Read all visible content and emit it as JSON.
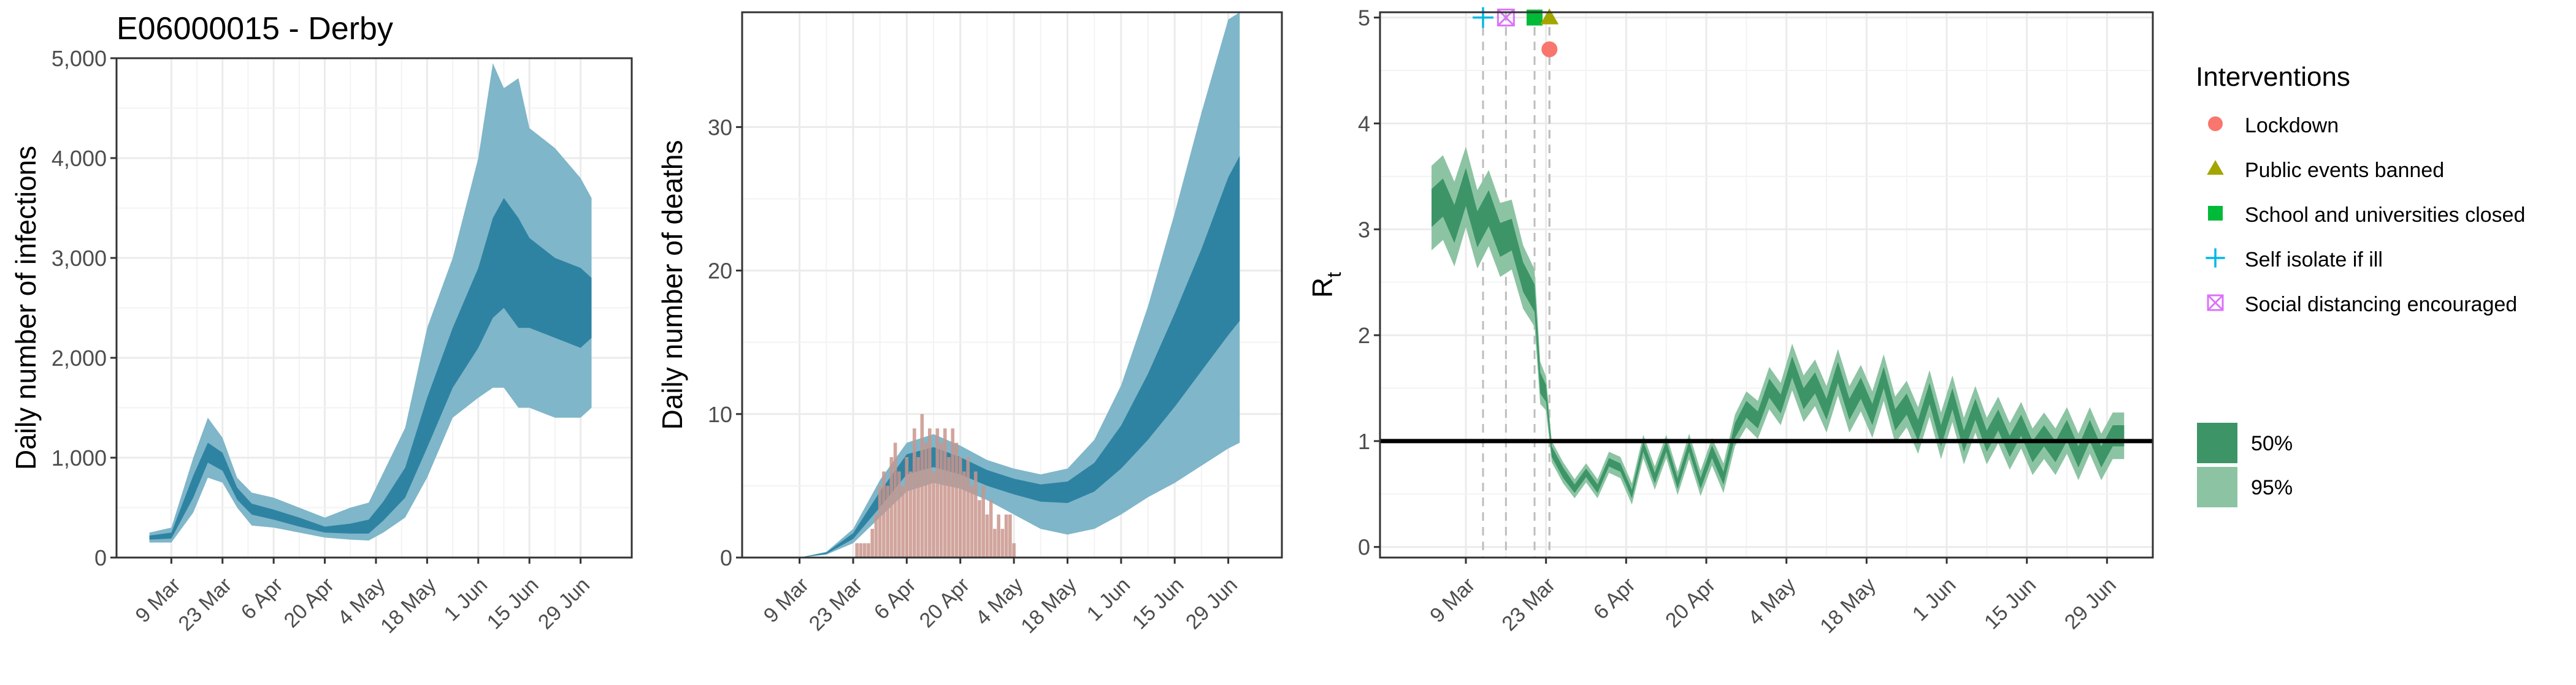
{
  "title": "E06000015 - Derby",
  "colors": {
    "ribbon_inner": "#2f83a2",
    "ribbon_outer": "#7fb6c9",
    "rt_inner": "#3d9567",
    "rt_outer": "#8cc4a3",
    "death_bars": "#c9958c",
    "grid": "#ebebeb",
    "axis_text": "#4d4d4d"
  },
  "chart_data": [
    {
      "id": "infections",
      "type": "area",
      "ylabel": "Daily number of infections",
      "ylim": [
        0,
        5000
      ],
      "yticks": [
        0,
        1000,
        2000,
        3000,
        4000,
        5000
      ],
      "ytick_labels": [
        "0",
        "1,000",
        "2,000",
        "3,000",
        "4,000",
        "5,000"
      ],
      "xticks": [
        9,
        23,
        37,
        51,
        65,
        79,
        93,
        107,
        121
      ],
      "xtick_labels": [
        "9 Mar",
        "23 Mar",
        "6 Apr",
        "20 Apr",
        "4 May",
        "18 May",
        "1 Jun",
        "15 Jun",
        "29 Jun"
      ],
      "xlim": [
        -6,
        135
      ],
      "x_note": "x = days since 1 Mar",
      "series": [
        {
          "band": "95%",
          "x": [
            3,
            9,
            15,
            19,
            23,
            27,
            31,
            37,
            44,
            51,
            58,
            63,
            67,
            73,
            79,
            86,
            93,
            97,
            100,
            104,
            107,
            114,
            121,
            124
          ],
          "lower": [
            150,
            150,
            450,
            800,
            750,
            500,
            320,
            300,
            250,
            200,
            180,
            170,
            250,
            400,
            800,
            1400,
            1600,
            1700,
            1700,
            1500,
            1500,
            1400,
            1400,
            1500
          ],
          "upper": [
            250,
            300,
            1000,
            1400,
            1200,
            800,
            650,
            600,
            500,
            400,
            500,
            550,
            850,
            1300,
            2300,
            3000,
            4000,
            4950,
            4700,
            4800,
            4300,
            4100,
            3800,
            3600
          ]
        },
        {
          "band": "50%",
          "x": [
            3,
            9,
            15,
            19,
            23,
            27,
            31,
            37,
            44,
            51,
            58,
            63,
            67,
            73,
            79,
            86,
            93,
            97,
            100,
            104,
            107,
            114,
            121,
            124
          ],
          "lower": [
            180,
            190,
            600,
            950,
            870,
            580,
            430,
            380,
            310,
            250,
            240,
            240,
            370,
            600,
            1100,
            1700,
            2100,
            2400,
            2500,
            2300,
            2300,
            2200,
            2100,
            2200
          ],
          "upper": [
            220,
            250,
            820,
            1150,
            1050,
            700,
            540,
            480,
            400,
            310,
            340,
            380,
            560,
            900,
            1600,
            2300,
            2900,
            3400,
            3600,
            3400,
            3200,
            3000,
            2900,
            2800
          ]
        }
      ]
    },
    {
      "id": "deaths",
      "type": "area",
      "ylabel": "Daily number of deaths",
      "ylim": [
        0,
        38
      ],
      "yticks": [
        0,
        10,
        20,
        30
      ],
      "ytick_labels": [
        "0",
        "10",
        "20",
        "30"
      ],
      "xticks": [
        9,
        23,
        37,
        51,
        65,
        79,
        93,
        107,
        121
      ],
      "xtick_labels": [
        "9 Mar",
        "23 Mar",
        "6 Apr",
        "20 Apr",
        "4 May",
        "18 May",
        "1 Jun",
        "15 Jun",
        "29 Jun"
      ],
      "xlim": [
        -6,
        135
      ],
      "series": [
        {
          "band": "95%",
          "x": [
            9,
            16,
            23,
            30,
            37,
            44,
            51,
            58,
            65,
            72,
            79,
            86,
            93,
            100,
            107,
            114,
            121,
            124
          ],
          "lower": [
            0,
            0.2,
            1.0,
            2.8,
            4.6,
            5.2,
            4.8,
            4.0,
            3.0,
            2.0,
            1.6,
            2.0,
            3.0,
            4.2,
            5.2,
            6.4,
            7.6,
            8.0
          ],
          "upper": [
            0,
            0.4,
            2.0,
            5.4,
            8.0,
            8.6,
            7.8,
            6.8,
            6.2,
            5.8,
            6.2,
            8.2,
            12.0,
            17.5,
            24.0,
            31.0,
            37.5,
            38.0
          ]
        },
        {
          "band": "50%",
          "x": [
            9,
            16,
            23,
            30,
            37,
            44,
            51,
            58,
            65,
            72,
            79,
            86,
            93,
            100,
            107,
            114,
            121,
            124
          ],
          "lower": [
            0,
            0.25,
            1.3,
            3.5,
            5.8,
            6.3,
            5.8,
            5.0,
            4.4,
            3.9,
            3.8,
            4.6,
            6.2,
            8.2,
            10.5,
            13.0,
            15.5,
            16.5
          ],
          "upper": [
            0,
            0.35,
            1.7,
            4.6,
            7.2,
            7.7,
            7.0,
            6.1,
            5.5,
            5.1,
            5.3,
            6.6,
            9.2,
            12.8,
            17.0,
            21.5,
            26.5,
            28.0
          ]
        }
      ],
      "bars_x": [
        24,
        25,
        26,
        27,
        28,
        29,
        30,
        31,
        32,
        33,
        34,
        35,
        36,
        37,
        38,
        39,
        40,
        41,
        42,
        43,
        44,
        45,
        46,
        47,
        48,
        49,
        50,
        51,
        52,
        53,
        54,
        55,
        56,
        57,
        58,
        59,
        60,
        61,
        62,
        63,
        64,
        65
      ],
      "bars": [
        1,
        1,
        1,
        1,
        2,
        3,
        5,
        6,
        5,
        7,
        8,
        6,
        5,
        7,
        6,
        9,
        7,
        10,
        8,
        9,
        6,
        9,
        8,
        9,
        7,
        9,
        8,
        7,
        6,
        7,
        5,
        6,
        4,
        5,
        3,
        4,
        2,
        3,
        2,
        3,
        3,
        1
      ]
    },
    {
      "id": "rt",
      "type": "area",
      "ylabel": "R",
      "ylabel_sub": "t",
      "ylim": [
        -0.1,
        5.05
      ],
      "yticks": [
        0,
        1,
        2,
        3,
        4,
        5
      ],
      "ytick_labels": [
        "0",
        "1",
        "2",
        "3",
        "4",
        "5"
      ],
      "xticks": [
        9,
        23,
        37,
        51,
        65,
        79,
        93,
        107,
        121
      ],
      "xtick_labels": [
        "9 Mar",
        "23 Mar",
        "6 Apr",
        "20 Apr",
        "4 May",
        "18 May",
        "1 Jun",
        "15 Jun",
        "29 Jun"
      ],
      "xlim": [
        -6,
        129
      ],
      "reference_line": 1,
      "x": [
        3,
        5,
        7,
        9,
        11,
        13,
        15,
        17,
        19,
        21,
        22,
        23,
        24,
        26,
        28,
        30,
        32,
        34,
        36,
        38,
        40,
        42,
        44,
        46,
        48,
        50,
        52,
        54,
        56,
        58,
        60,
        62,
        64,
        66,
        68,
        70,
        72,
        74,
        76,
        78,
        80,
        82,
        84,
        86,
        88,
        90,
        92,
        94,
        96,
        98,
        100,
        102,
        104,
        106,
        108,
        110,
        112,
        114,
        116,
        118,
        120,
        122,
        124
      ],
      "median": [
        3.2,
        3.3,
        3.05,
        3.4,
        3.0,
        3.2,
        2.9,
        2.95,
        2.55,
        2.35,
        1.55,
        1.45,
        0.9,
        0.7,
        0.55,
        0.7,
        0.55,
        0.8,
        0.75,
        0.5,
        0.95,
        0.65,
        0.95,
        0.6,
        0.95,
        0.6,
        0.9,
        0.65,
        1.1,
        1.3,
        1.2,
        1.5,
        1.35,
        1.7,
        1.4,
        1.55,
        1.3,
        1.65,
        1.3,
        1.5,
        1.25,
        1.6,
        1.2,
        1.35,
        1.1,
        1.45,
        1.05,
        1.4,
        1.0,
        1.3,
        1.0,
        1.2,
        0.95,
        1.15,
        0.9,
        1.05,
        0.9,
        1.1,
        0.85,
        1.1,
        0.85,
        1.05,
        1.05
      ],
      "half50": [
        0.18,
        0.18,
        0.18,
        0.18,
        0.17,
        0.17,
        0.16,
        0.15,
        0.14,
        0.13,
        0.1,
        0.08,
        0.05,
        0.05,
        0.04,
        0.04,
        0.04,
        0.04,
        0.04,
        0.04,
        0.05,
        0.05,
        0.05,
        0.05,
        0.05,
        0.05,
        0.06,
        0.06,
        0.07,
        0.08,
        0.08,
        0.09,
        0.09,
        0.1,
        0.1,
        0.1,
        0.1,
        0.1,
        0.1,
        0.1,
        0.1,
        0.1,
        0.1,
        0.1,
        0.1,
        0.1,
        0.1,
        0.1,
        0.1,
        0.1,
        0.1,
        0.1,
        0.1,
        0.1,
        0.1,
        0.1,
        0.1,
        0.1,
        0.1,
        0.1,
        0.1,
        0.1,
        0.1
      ],
      "half95": [
        0.4,
        0.4,
        0.4,
        0.38,
        0.37,
        0.36,
        0.35,
        0.33,
        0.3,
        0.27,
        0.2,
        0.16,
        0.1,
        0.1,
        0.09,
        0.09,
        0.09,
        0.1,
        0.1,
        0.1,
        0.11,
        0.11,
        0.11,
        0.11,
        0.12,
        0.12,
        0.13,
        0.14,
        0.15,
        0.17,
        0.18,
        0.2,
        0.2,
        0.22,
        0.22,
        0.22,
        0.22,
        0.22,
        0.22,
        0.22,
        0.22,
        0.22,
        0.22,
        0.22,
        0.22,
        0.22,
        0.22,
        0.22,
        0.22,
        0.22,
        0.22,
        0.22,
        0.22,
        0.22,
        0.22,
        0.22,
        0.22,
        0.22,
        0.22,
        0.22,
        0.22,
        0.22,
        0.22
      ],
      "interventions": [
        {
          "name": "Self isolate if ill",
          "x": 12,
          "y": 5.0,
          "shape": "plus",
          "color": "#00b9e3"
        },
        {
          "name": "Social distancing encouraged",
          "x": 16,
          "y": 5.0,
          "shape": "boxx",
          "color": "#db72fb"
        },
        {
          "name": "School and universities closed",
          "x": 21,
          "y": 5.0,
          "shape": "square",
          "color": "#00ba38"
        },
        {
          "name": "Public events banned",
          "x": 23.6,
          "y": 5.0,
          "shape": "triangle",
          "color": "#a3a500"
        },
        {
          "name": "Lockdown",
          "x": 23.6,
          "y": 4.7,
          "shape": "circle",
          "color": "#f8766d"
        }
      ]
    }
  ],
  "legend": {
    "title": "Interventions",
    "items": [
      {
        "label": "Lockdown",
        "shape": "circle",
        "color": "#f8766d"
      },
      {
        "label": "Public events banned",
        "shape": "triangle",
        "color": "#a3a500"
      },
      {
        "label": "School and universities closed",
        "shape": "square",
        "color": "#00ba38"
      },
      {
        "label": "Self isolate if ill",
        "shape": "plus",
        "color": "#00b9e3"
      },
      {
        "label": "Social distancing encouraged",
        "shape": "boxx",
        "color": "#db72fb"
      }
    ],
    "bands": [
      {
        "label": "50%",
        "color": "#3d9567"
      },
      {
        "label": "95%",
        "color": "#8cc4a3"
      }
    ]
  }
}
